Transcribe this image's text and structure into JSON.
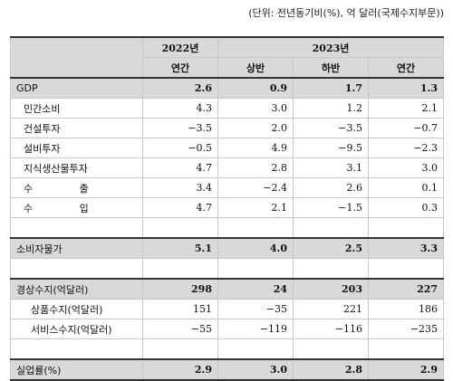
{
  "unit_note": "(단위: 전년동기비(%), 억 달러(국제수지부문))",
  "header": {
    "year_2022": "2022년",
    "year_2023": "2023년",
    "col_2022_annual": "연간",
    "col_2023_h1": "상반",
    "col_2023_h2": "하반",
    "col_2023_annual": "연간"
  },
  "rows": [
    {
      "label": "GDP",
      "values": [
        "2.6",
        "0.9",
        "1.7",
        "1.3"
      ]
    },
    {
      "label": "민간소비",
      "values": [
        "4.3",
        "3.0",
        "1.2",
        "2.1"
      ]
    },
    {
      "label": "건설투자",
      "values": [
        "−3.5",
        "2.0",
        "−3.5",
        "−0.7"
      ]
    },
    {
      "label": "설비투자",
      "values": [
        "−0.5",
        "4.9",
        "−9.5",
        "−2.3"
      ]
    },
    {
      "label": "지식생산물투자",
      "values": [
        "4.7",
        "2.8",
        "3.1",
        "3.0"
      ]
    },
    {
      "label": "수 출",
      "values": [
        "3.4",
        "−2.4",
        "2.6",
        "0.1"
      ]
    },
    {
      "label": "수 입",
      "values": [
        "4.7",
        "2.1",
        "−1.5",
        "0.3"
      ]
    },
    {
      "label": "소비자물가",
      "values": [
        "5.1",
        "4.0",
        "2.5",
        "3.3"
      ]
    },
    {
      "label": "경상수지(억달러)",
      "values": [
        "298",
        "24",
        "203",
        "227"
      ]
    },
    {
      "label": "상품수지(억달러)",
      "values": [
        "151",
        "−35",
        "221",
        "186"
      ]
    },
    {
      "label": "서비스수지(억달러)",
      "values": [
        "−55",
        "−119",
        "−116",
        "−235"
      ]
    },
    {
      "label": "실업률(%)",
      "values": [
        "2.9",
        "3.0",
        "2.8",
        "2.9"
      ]
    }
  ]
}
